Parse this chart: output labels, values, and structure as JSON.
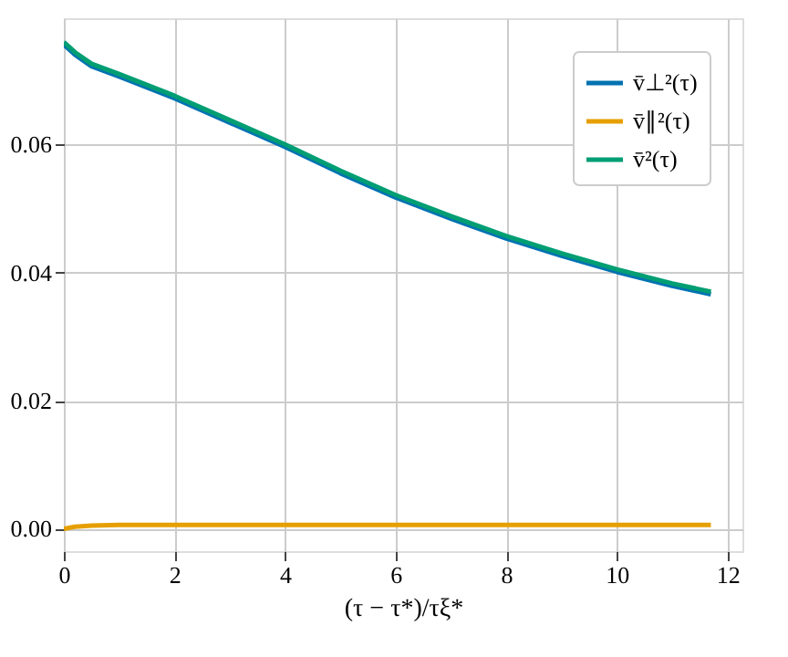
{
  "chart_data": {
    "type": "line",
    "xlabel": "(τ − τ*)/τξ*",
    "x": [
      0,
      0.2,
      0.5,
      1,
      2,
      3,
      4,
      5,
      6,
      7,
      8,
      9,
      10,
      11,
      11.7
    ],
    "series": [
      {
        "name": "v̄⊥²(τ)",
        "color": "#0072b2",
        "values": [
          0.0756,
          0.074,
          0.0722,
          0.0706,
          0.0672,
          0.0634,
          0.0596,
          0.0555,
          0.0517,
          0.0484,
          0.0453,
          0.0426,
          0.0401,
          0.0379,
          0.0366
        ]
      },
      {
        "name": "v̄∥²(τ)",
        "color": "#e69f00",
        "values": [
          0.0,
          0.0003,
          0.0005,
          0.0006,
          0.0006,
          0.0006,
          0.0006,
          0.0006,
          0.0006,
          0.0006,
          0.0006,
          0.0006,
          0.0006,
          0.0006,
          0.0006
        ]
      },
      {
        "name": "v̄²(τ)",
        "color": "#009e73",
        "values": [
          0.076,
          0.0744,
          0.0726,
          0.071,
          0.0676,
          0.0638,
          0.06,
          0.0559,
          0.0521,
          0.0488,
          0.0457,
          0.043,
          0.0405,
          0.0383,
          0.037
        ]
      }
    ],
    "xlim": [
      0,
      12.27
    ],
    "xticks": [
      0,
      2,
      4,
      6,
      8,
      10,
      12
    ],
    "ylim": [
      -0.0035,
      0.0797
    ],
    "yticks": [
      {
        "value": 0,
        "label": "0.00"
      },
      {
        "value": 0.02,
        "label": "0.02"
      },
      {
        "value": 0.04,
        "label": "0.04"
      },
      {
        "value": 0.06,
        "label": "0.06"
      }
    ],
    "grid": true,
    "legend": "top right",
    "marker": "none",
    "line_style": "solid"
  }
}
